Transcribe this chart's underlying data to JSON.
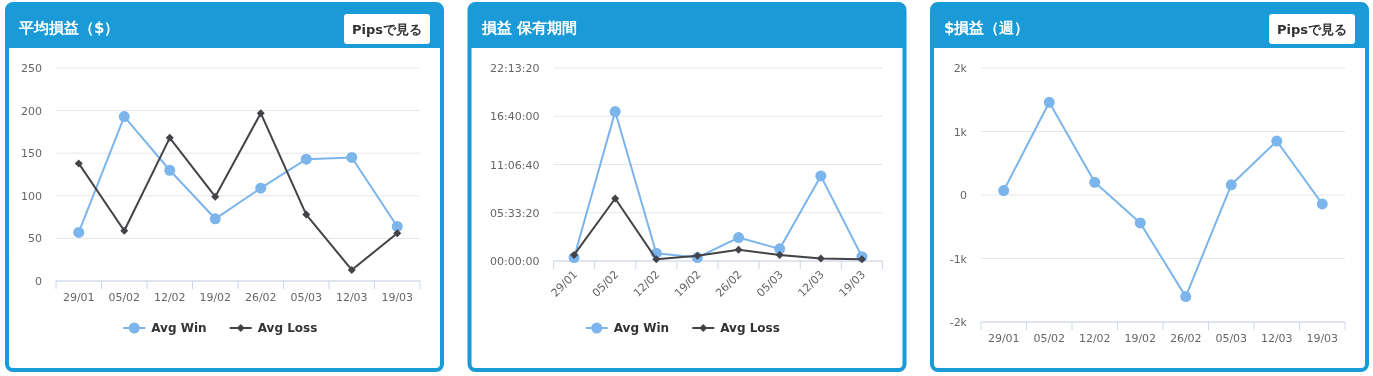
{
  "chart_data": [
    {
      "type": "line",
      "title": "平均損益（$）",
      "annotations": [
        "Pipsで見る"
      ],
      "categories": [
        "29/01",
        "05/02",
        "12/02",
        "19/02",
        "26/02",
        "05/03",
        "12/03",
        "19/03"
      ],
      "ylim": [
        0,
        250
      ],
      "yticks": [
        0,
        50,
        100,
        150,
        200,
        250
      ],
      "grid": "y",
      "legend": "bottom",
      "series": [
        {
          "name": "Avg Win",
          "color": "#7cb5ec",
          "marker": "circle",
          "values": [
            57,
            193,
            130,
            73,
            109,
            143,
            145,
            64
          ]
        },
        {
          "name": "Avg Loss",
          "color": "#434348",
          "marker": "diamond",
          "values": [
            138,
            59,
            168,
            99,
            197,
            78,
            13,
            56
          ]
        }
      ]
    },
    {
      "type": "line",
      "title": "損益 保有期間",
      "categories": [
        "29/01",
        "05/02",
        "12/02",
        "19/02",
        "26/02",
        "05/03",
        "12/03",
        "19/03"
      ],
      "ylim": [
        0,
        22.2222
      ],
      "yticks": [
        {
          "value": 0,
          "label": "00:00:00"
        },
        {
          "value": 5.5556,
          "label": "05:33:20"
        },
        {
          "value": 11.1111,
          "label": "11:06:40"
        },
        {
          "value": 16.6667,
          "label": "16:40:00"
        },
        {
          "value": 22.2222,
          "label": "22:13:20"
        }
      ],
      "grid": "y",
      "legend": "bottom",
      "series": [
        {
          "name": "Avg Win",
          "color": "#7cb5ec",
          "marker": "circle",
          "values": [
            0.4,
            17.2,
            0.9,
            0.4,
            2.7,
            1.4,
            9.8,
            0.5
          ]
        },
        {
          "name": "Avg Loss",
          "color": "#434348",
          "marker": "diamond",
          "values": [
            0.7,
            7.2,
            0.2,
            0.6,
            1.3,
            0.7,
            0.3,
            0.2
          ]
        }
      ]
    },
    {
      "type": "line",
      "title": "$損益（週）",
      "annotations": [
        "Pipsで見る"
      ],
      "categories": [
        "29/01",
        "05/02",
        "12/02",
        "19/02",
        "26/02",
        "05/03",
        "12/03",
        "19/03"
      ],
      "ylim": [
        -2000,
        2000
      ],
      "yticks": [
        {
          "value": -2000,
          "label": "-2k"
        },
        {
          "value": -1000,
          "label": "-1k"
        },
        0,
        {
          "value": 1000,
          "label": "1k"
        },
        {
          "value": 2000,
          "label": "2k"
        }
      ],
      "grid": "y",
      "series": [
        {
          "color": "#7cb5ec",
          "marker": "circle",
          "values": [
            70,
            1460,
            200,
            -440,
            -1600,
            160,
            850,
            -140
          ]
        }
      ]
    }
  ]
}
